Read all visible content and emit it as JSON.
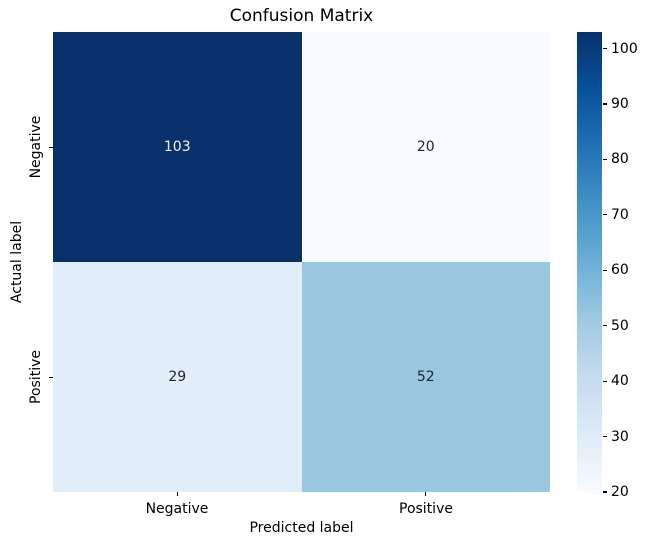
{
  "title": "Confusion Matrix",
  "axes": {
    "x_label": "Predicted label",
    "y_label": "Actual label",
    "x_ticks": [
      "Negative",
      "Positive"
    ],
    "y_ticks": [
      "Negative",
      "Positive"
    ]
  },
  "cells": [
    {
      "row": "Negative",
      "col": "Negative",
      "value": "103",
      "bg": "#08306b",
      "fg": "#f5f5f5"
    },
    {
      "row": "Negative",
      "col": "Positive",
      "value": "20",
      "bg": "#f7fbff",
      "fg": "#262626"
    },
    {
      "row": "Positive",
      "col": "Negative",
      "value": "29",
      "bg": "#e1edf8",
      "fg": "#262626"
    },
    {
      "row": "Positive",
      "col": "Positive",
      "value": "52",
      "bg": "#9ac7e0",
      "fg": "#262626"
    }
  ],
  "colorbar": {
    "vmin": 20,
    "vmax": 103,
    "ticks": [
      20,
      30,
      40,
      50,
      60,
      70,
      80,
      90,
      100
    ],
    "gradient_top_to_bottom": [
      "#08306b",
      "#08519c",
      "#2171b5",
      "#4292c6",
      "#6baed6",
      "#9ecae1",
      "#c6dbef",
      "#deebf7",
      "#f7fbff"
    ]
  },
  "chart_data": {
    "type": "heatmap",
    "title": "Confusion Matrix",
    "xlabel": "Predicted label",
    "ylabel": "Actual label",
    "x_categories": [
      "Negative",
      "Positive"
    ],
    "y_categories": [
      "Negative",
      "Positive"
    ],
    "matrix": [
      [
        103,
        20
      ],
      [
        29,
        52
      ]
    ],
    "colormap": "Blues",
    "colorbar_range": [
      20,
      103
    ],
    "colorbar_ticks": [
      20,
      30,
      40,
      50,
      60,
      70,
      80,
      90,
      100
    ],
    "annotations": true,
    "grid": false,
    "legend_position": "colorbar-right"
  }
}
